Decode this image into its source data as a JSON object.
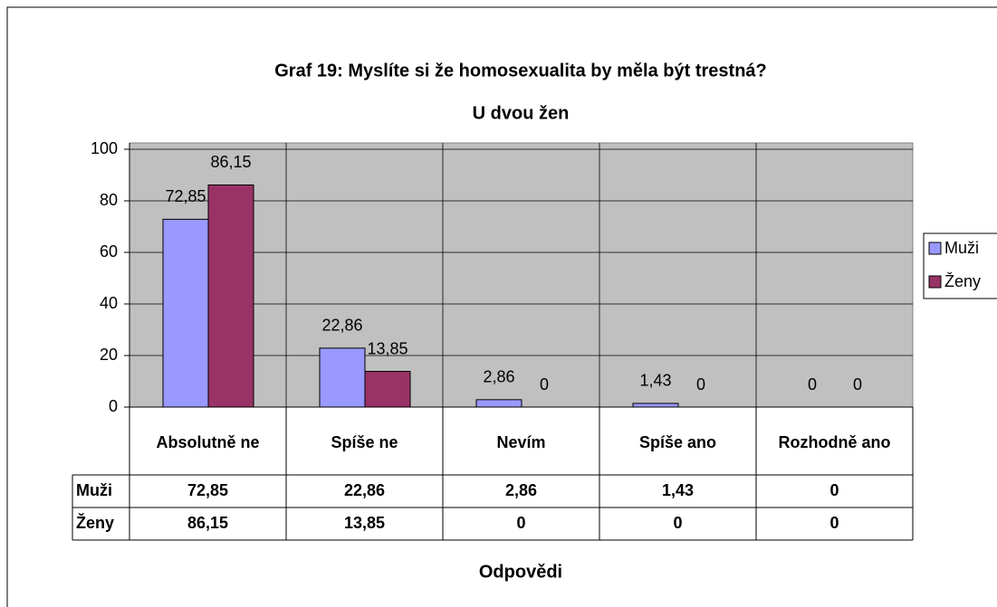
{
  "chart_data": {
    "type": "bar",
    "title": "Graf 19: Myslíte si že homosexualita by měla být trestná?",
    "subtitle": "U dvou žen",
    "x_label": "Odpovědi",
    "categories": [
      "Absolutně ne",
      "Spíše ne",
      "Nevím",
      "Spíše ano",
      "Rozhodně ano"
    ],
    "series": [
      {
        "name": "Muži",
        "color": "#9999ff",
        "values": [
          72.85,
          22.86,
          2.86,
          1.43,
          0
        ],
        "value_labels": [
          "72,85",
          "22,86",
          "2,86",
          "1,43",
          "0"
        ]
      },
      {
        "name": "Ženy",
        "color": "#993366",
        "values": [
          86.15,
          13.85,
          0,
          0,
          0
        ],
        "value_labels": [
          "86,15",
          "13,85",
          "0",
          "0",
          "0"
        ]
      }
    ],
    "ylim": [
      0,
      100
    ],
    "yticks": [
      0,
      20,
      40,
      60,
      80,
      100
    ],
    "grid": true,
    "legend": "right"
  }
}
